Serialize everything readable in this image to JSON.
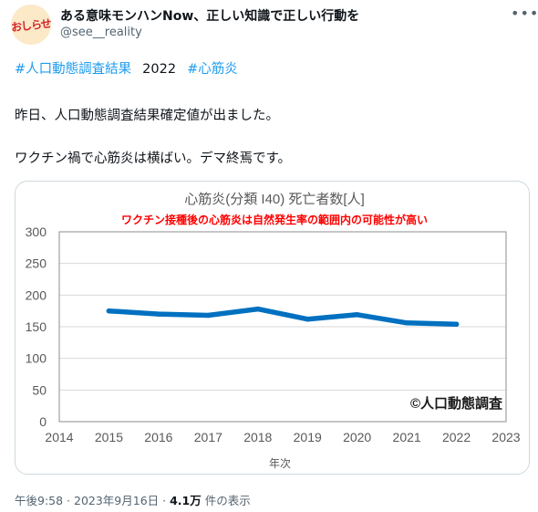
{
  "tweet": {
    "avatar_text": "おしらせ",
    "display_name": "ある意味モンハンNow、正しい知識で正しい行動を",
    "handle": "@see__reality",
    "more_icon": "more-dots-icon",
    "hashtag1": "#人口動態調査結果",
    "year_text": "2022",
    "hashtag2": "#心筋炎",
    "line1": "昨日、人口動態調査結果確定値が出ました。",
    "line2": "ワクチン禍で心筋炎は横ばい。デマ終焉です。",
    "time": "午後9:58 · 2023年9月16日 · ",
    "views_count": "4.1万",
    "views_suffix": " 件の表示"
  },
  "chart_data": {
    "type": "line",
    "title": "心筋炎(分類 I40)  死亡者数[人]",
    "subtitle": "ワクチン接種後の心筋炎は自然発生率の範囲内の可能性が高い",
    "xlabel": "年次",
    "ylabel": "",
    "x_ticks": [
      "2014",
      "2015",
      "2016",
      "2017",
      "2018",
      "2019",
      "2020",
      "2021",
      "2022",
      "2023"
    ],
    "y_ticks": [
      "0",
      "50",
      "100",
      "150",
      "200",
      "250",
      "300"
    ],
    "xlim": [
      2014,
      2023
    ],
    "ylim": [
      0,
      300
    ],
    "grid": true,
    "series": [
      {
        "x": [
          2015,
          2016,
          2017,
          2018,
          2019,
          2020,
          2021,
          2022
        ],
        "values": [
          175,
          170,
          168,
          178,
          162,
          169,
          156,
          154
        ],
        "color": "#0070c0"
      }
    ],
    "annotation": "©人口動態調査",
    "subtitle_color": "#ff0000"
  }
}
